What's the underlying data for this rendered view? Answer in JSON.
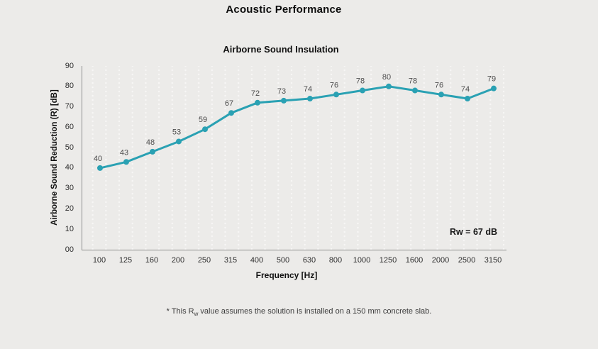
{
  "page": {
    "title": "Acoustic Performance",
    "background_color": "#ecebe9"
  },
  "chart_data": {
    "type": "line",
    "title": "Airborne Sound Insulation",
    "categories": [
      "100",
      "125",
      "160",
      "200",
      "250",
      "315",
      "400",
      "500",
      "630",
      "800",
      "1000",
      "1250",
      "1600",
      "2000",
      "2500",
      "3150"
    ],
    "values": [
      40,
      43,
      48,
      53,
      59,
      67,
      72,
      73,
      74,
      76,
      78,
      80,
      78,
      76,
      74,
      79
    ],
    "xlabel": "Frequency [Hz]",
    "ylabel": "Airborne Sound Reduction (R) [dB]",
    "ylim": [
      0,
      90
    ],
    "ytick_step": 10,
    "ytick_labels_bottom_up": [
      "00",
      "10",
      "20",
      "30",
      "40",
      "50",
      "60",
      "70",
      "80",
      "90"
    ],
    "grid": "vertical-dotted",
    "legend": "none",
    "line_color": "#2aa1b3",
    "marker": "circle",
    "data_label_color": "#4d4d4d",
    "data_labels_shown": true,
    "annotation": "Rw = 67 dB"
  },
  "footnote": {
    "prefix": "* This R",
    "subscript": "w",
    "suffix": " value assumes the solution is installed on a 150 mm concrete slab."
  }
}
